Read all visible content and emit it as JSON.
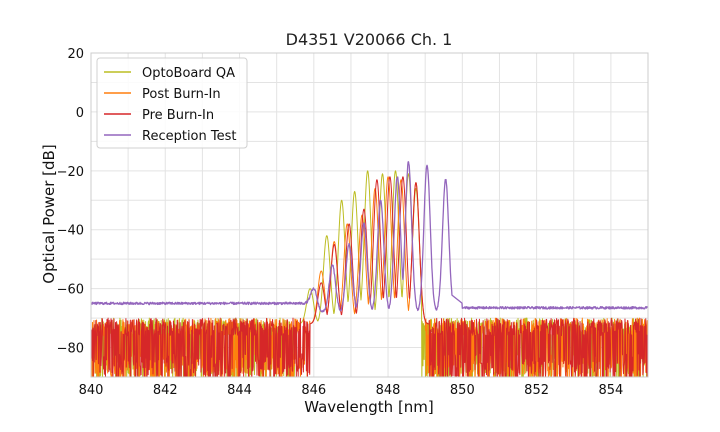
{
  "chart_data": {
    "type": "line",
    "title": "D4351 V20066 Ch. 1",
    "xlabel": "Wavelength [nm]",
    "ylabel": "Optical Power [dB]",
    "xlim": [
      840,
      855
    ],
    "ylim": [
      -90,
      20
    ],
    "xticks": [
      840,
      842,
      844,
      846,
      848,
      850,
      852,
      854
    ],
    "yticks": [
      20,
      0,
      -20,
      -40,
      -60,
      -80
    ],
    "ytick_labels": [
      "20",
      "0",
      "−20",
      "−40",
      "−60",
      "−80"
    ],
    "grid": true,
    "legend_position": "top-left",
    "noise_floor": {
      "level": -80,
      "min": -90,
      "max": -70
    },
    "series": [
      {
        "name": "OptoBoard QA",
        "color": "#bcbd22",
        "range": [
          845.5,
          848.9
        ],
        "peaks": [
          [
            845.9,
            -60
          ],
          [
            846.35,
            -42
          ],
          [
            846.75,
            -30
          ],
          [
            847.1,
            -27
          ],
          [
            847.45,
            -20
          ],
          [
            847.85,
            -21
          ],
          [
            848.2,
            -20
          ],
          [
            848.55,
            -21
          ],
          [
            848.75,
            -26
          ]
        ]
      },
      {
        "name": "Post Burn-In",
        "color": "#ff7f0e",
        "range": [
          845.9,
          849.0
        ],
        "peaks": [
          [
            846.2,
            -54
          ],
          [
            846.55,
            -44
          ],
          [
            846.9,
            -38
          ],
          [
            847.3,
            -35
          ],
          [
            847.65,
            -26
          ],
          [
            848.0,
            -22
          ],
          [
            848.35,
            -23
          ],
          [
            848.75,
            -24
          ]
        ]
      },
      {
        "name": "Pre Burn-In",
        "color": "#d62728",
        "range": [
          845.9,
          849.1
        ],
        "peaks": [
          [
            846.2,
            -58
          ],
          [
            846.55,
            -45
          ],
          [
            846.95,
            -38
          ],
          [
            847.35,
            -33
          ],
          [
            847.7,
            -23
          ],
          [
            848.05,
            -22
          ],
          [
            848.4,
            -22
          ],
          [
            848.75,
            -24
          ]
        ]
      },
      {
        "name": "Reception Test",
        "color": "#9467bd",
        "floor_left": -65,
        "floor_right": -66.5,
        "peaks": [
          [
            846.0,
            -60
          ],
          [
            846.5,
            -52
          ],
          [
            846.95,
            -45
          ],
          [
            847.35,
            -38
          ],
          [
            847.8,
            -30
          ],
          [
            848.25,
            -22
          ],
          [
            848.55,
            -17
          ],
          [
            849.05,
            -18
          ],
          [
            849.55,
            -23
          ]
        ]
      }
    ]
  }
}
